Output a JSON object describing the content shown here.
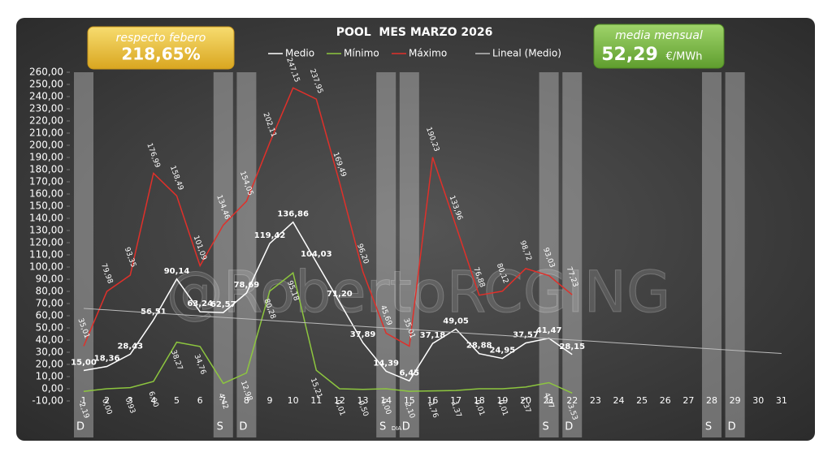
{
  "chart_data": {
    "type": "line",
    "title": "POOL  MES MARZO 2026",
    "x_label": "DIA",
    "watermark": "@RobertoRCGING",
    "box_left": {
      "caption": "respecto febero",
      "value": "218,65%"
    },
    "box_right": {
      "caption": "media mensual",
      "value": "52,29",
      "unit": "€/MWh"
    },
    "categories": [
      "1",
      "2",
      "3",
      "4",
      "5",
      "6",
      "7",
      "8",
      "9",
      "10",
      "11",
      "12",
      "13",
      "14",
      "15",
      "16",
      "17",
      "18",
      "19",
      "20",
      "21",
      "22",
      "23",
      "24",
      "25",
      "26",
      "27",
      "28",
      "29",
      "30",
      "31"
    ],
    "series": [
      {
        "name": "Medio",
        "color": "#ffffff",
        "values": [
          15.0,
          18.36,
          28.43,
          56.51,
          90.14,
          63.24,
          62.57,
          78.69,
          119.42,
          136.86,
          104.03,
          71.2,
          37.89,
          14.39,
          6.45,
          37.18,
          49.05,
          28.88,
          24.95,
          37.57,
          41.47,
          28.15,
          null,
          null,
          null,
          null,
          null,
          null,
          null,
          null,
          null
        ],
        "value_labels": [
          "15,00",
          "18,36",
          "28,43",
          "56,51",
          "90,14",
          "63,24",
          "62,57",
          "78,69",
          "119,42",
          "136,86",
          "104,03",
          "71,20",
          "37,89",
          "14,39",
          "6,45",
          "37,18",
          "49,05",
          "28,88",
          "24,95",
          "37,57",
          "41,47",
          "28,15",
          null,
          null,
          null,
          null,
          null,
          null,
          null,
          null,
          null
        ]
      },
      {
        "name": "Mínimo",
        "color": "#8dc63f",
        "values": [
          -2.19,
          0.0,
          0.93,
          6.0,
          38.27,
          34.76,
          4.42,
          12.98,
          80.28,
          95.18,
          15.21,
          -0.01,
          -0.5,
          0.0,
          -2.1,
          -1.76,
          -1.37,
          -0.01,
          -0.01,
          1.37,
          4.97,
          -3.53,
          null,
          null,
          null,
          null,
          null,
          null,
          null,
          null,
          null
        ],
        "value_labels": [
          "-2,19",
          "0,00",
          "0,93",
          "6,00",
          "38,27",
          "34,76",
          "4,42",
          "12,98",
          "80,28",
          "95,18",
          "15,21",
          "-0,01",
          "-0,50",
          "0,00",
          "-2,10",
          "-1,76",
          "-1,37",
          "-0,01",
          "-0,01",
          "1,37",
          "4,97",
          "-3,53",
          null,
          null,
          null,
          null,
          null,
          null,
          null,
          null,
          null
        ]
      },
      {
        "name": "Máximo",
        "color": "#e0302a",
        "values": [
          35.01,
          79.98,
          93.35,
          176.99,
          158.49,
          101.09,
          134.46,
          154.05,
          202.11,
          247.15,
          237.95,
          169.49,
          96.2,
          45.69,
          35.01,
          190.23,
          133.96,
          76.88,
          80.12,
          98.72,
          93.03,
          77.23,
          null,
          null,
          null,
          null,
          null,
          null,
          null,
          null,
          null
        ],
        "value_labels": [
          "35,01",
          "79,98",
          "93,35",
          "176,99",
          "158,49",
          "101,09",
          "134,46",
          "154,05",
          "202,11",
          "247,15",
          "237,95",
          "169,49",
          "96,20",
          "45,69",
          "35,01",
          "190,23",
          "133,96",
          "76,88",
          "80,12",
          "98,72",
          "93,03",
          "77,23",
          null,
          null,
          null,
          null,
          null,
          null,
          null,
          null,
          null
        ]
      },
      {
        "name": "Lineal (Medio)",
        "color": "#bbbbbb",
        "values": [
          66.0,
          64.8,
          63.5,
          62.3,
          61.1,
          59.8,
          58.6,
          57.4,
          56.1,
          54.9,
          53.7,
          52.4,
          51.2,
          50.0,
          48.7,
          47.5,
          46.3,
          45.0,
          43.8,
          42.6,
          41.3,
          40.1,
          38.9,
          37.6,
          36.4,
          35.2,
          33.9,
          32.7,
          31.5,
          30.2,
          29.0
        ]
      }
    ],
    "weekend_markers": [
      {
        "day": 1,
        "label": "D"
      },
      {
        "day": 7,
        "label": "S"
      },
      {
        "day": 8,
        "label": "D"
      },
      {
        "day": 14,
        "label": "S"
      },
      {
        "day": 15,
        "label": "D"
      },
      {
        "day": 21,
        "label": "S"
      },
      {
        "day": 22,
        "label": "D"
      },
      {
        "day": 28,
        "label": "S"
      },
      {
        "day": 29,
        "label": "D"
      }
    ],
    "ylim": [
      -10,
      260
    ],
    "yticks": [
      {
        "value": -10,
        "label": "-10,00"
      },
      {
        "value": 0,
        "label": "0,00"
      },
      {
        "value": 10,
        "label": "10,00"
      },
      {
        "value": 20,
        "label": "20,00"
      },
      {
        "value": 30,
        "label": "30,00"
      },
      {
        "value": 40,
        "label": "40,00"
      },
      {
        "value": 50,
        "label": "50,00"
      },
      {
        "value": 60,
        "label": "60,00"
      },
      {
        "value": 70,
        "label": "70,00"
      },
      {
        "value": 80,
        "label": "80,00"
      },
      {
        "value": 90,
        "label": "90,00"
      },
      {
        "value": 100,
        "label": "100,00"
      },
      {
        "value": 110,
        "label": "110,00"
      },
      {
        "value": 120,
        "label": "120,00"
      },
      {
        "value": 130,
        "label": "130,00"
      },
      {
        "value": 140,
        "label": "140,00"
      },
      {
        "value": 150,
        "label": "150,00"
      },
      {
        "value": 160,
        "label": "160,00"
      },
      {
        "value": 170,
        "label": "170,00"
      },
      {
        "value": 180,
        "label": "180,00"
      },
      {
        "value": 190,
        "label": "190,00"
      },
      {
        "value": 200,
        "label": "200,00"
      },
      {
        "value": 210,
        "label": "210,00"
      },
      {
        "value": 220,
        "label": "220,00"
      },
      {
        "value": 230,
        "label": "230,00"
      },
      {
        "value": 240,
        "label": "240,00"
      },
      {
        "value": 250,
        "label": "250,00"
      },
      {
        "value": 260,
        "label": "260,00"
      }
    ]
  }
}
